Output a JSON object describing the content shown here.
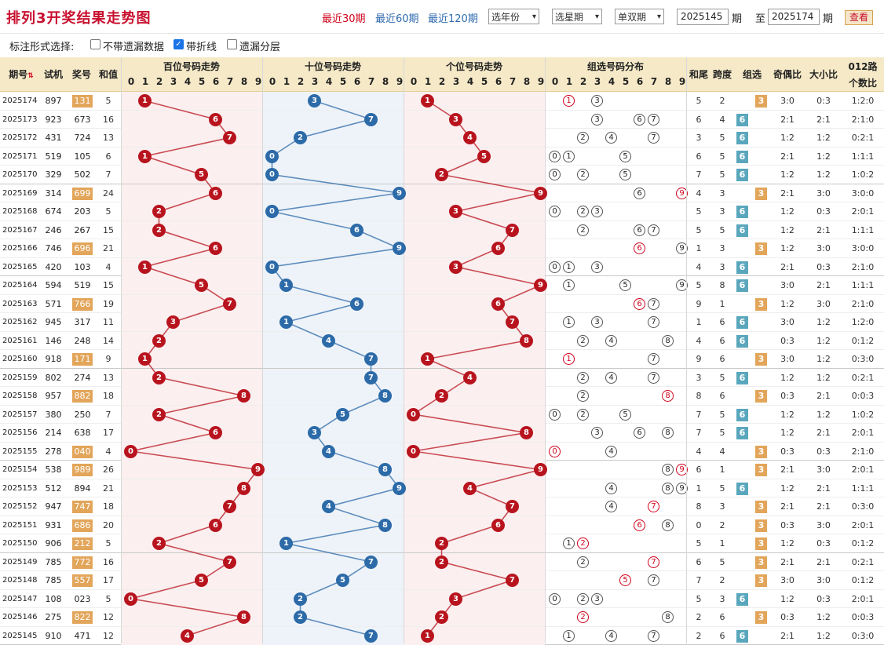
{
  "header": {
    "title": "排列3开奖结果走势图",
    "links": [
      {
        "label": "最近30期",
        "active": true
      },
      {
        "label": "最近60期",
        "active": false
      },
      {
        "label": "最近120期",
        "active": false
      }
    ],
    "select_year": "选年份",
    "select_week": "选星期",
    "select_parity": "单双期",
    "from_value": "2025145",
    "from_label": "期",
    "to_prefix": "至",
    "to_value": "2025174",
    "to_label": "期",
    "query_label": "查看"
  },
  "options": {
    "label": "标注形式选择:",
    "items": [
      {
        "label": "不带遗漏数据",
        "checked": false
      },
      {
        "label": "带折线",
        "checked": true
      },
      {
        "label": "遗漏分层",
        "checked": false
      }
    ]
  },
  "columns": {
    "period": "期号",
    "trial": "试机",
    "award": "奖号",
    "sum": "和值",
    "hundreds": "百位号码走势",
    "tens": "十位号码走势",
    "units": "个位号码走势",
    "group": "组选号码分布",
    "tail": "和尾",
    "span": "跨度",
    "zx": "组选",
    "oe": "奇偶比",
    "bs": "大小比",
    "road": "012路",
    "road2": "个数比",
    "digits": [
      "0",
      "1",
      "2",
      "3",
      "4",
      "5",
      "6",
      "7",
      "8",
      "9"
    ]
  },
  "colors": {
    "red": "#b8141e",
    "blue": "#2c6aa8",
    "header_bg": "#f5e9c7",
    "zu3": "#e2a55a",
    "zu6": "#5aa7bd"
  },
  "rows": [
    {
      "p": "2025174",
      "t": "897",
      "a": "131",
      "s": "5",
      "tail": "5",
      "span": "2",
      "zx": "3",
      "oe": "3:0",
      "bs": "0:3",
      "road": "1:2:0",
      "hl": true
    },
    {
      "p": "2025173",
      "t": "923",
      "a": "673",
      "s": "16",
      "tail": "6",
      "span": "4",
      "zx": "6",
      "oe": "2:1",
      "bs": "2:1",
      "road": "2:1:0"
    },
    {
      "p": "2025172",
      "t": "431",
      "a": "724",
      "s": "13",
      "tail": "3",
      "span": "5",
      "zx": "6",
      "oe": "1:2",
      "bs": "1:2",
      "road": "0:2:1"
    },
    {
      "p": "2025171",
      "t": "519",
      "a": "105",
      "s": "6",
      "tail": "6",
      "span": "5",
      "zx": "6",
      "oe": "2:1",
      "bs": "1:2",
      "road": "1:1:1"
    },
    {
      "p": "2025170",
      "t": "329",
      "a": "502",
      "s": "7",
      "tail": "7",
      "span": "5",
      "zx": "6",
      "oe": "1:2",
      "bs": "1:2",
      "road": "1:0:2"
    },
    {
      "p": "2025169",
      "t": "314",
      "a": "699",
      "s": "24",
      "tail": "4",
      "span": "3",
      "zx": "3",
      "oe": "2:1",
      "bs": "3:0",
      "road": "3:0:0",
      "hl": true
    },
    {
      "p": "2025168",
      "t": "674",
      "a": "203",
      "s": "5",
      "tail": "5",
      "span": "3",
      "zx": "6",
      "oe": "1:2",
      "bs": "0:3",
      "road": "2:0:1"
    },
    {
      "p": "2025167",
      "t": "246",
      "a": "267",
      "s": "15",
      "tail": "5",
      "span": "5",
      "zx": "6",
      "oe": "1:2",
      "bs": "2:1",
      "road": "1:1:1"
    },
    {
      "p": "2025166",
      "t": "746",
      "a": "696",
      "s": "21",
      "tail": "1",
      "span": "3",
      "zx": "3",
      "oe": "1:2",
      "bs": "3:0",
      "road": "3:0:0",
      "hl": true
    },
    {
      "p": "2025165",
      "t": "420",
      "a": "103",
      "s": "4",
      "tail": "4",
      "span": "3",
      "zx": "6",
      "oe": "2:1",
      "bs": "0:3",
      "road": "2:1:0"
    },
    {
      "p": "2025164",
      "t": "594",
      "a": "519",
      "s": "15",
      "tail": "5",
      "span": "8",
      "zx": "6",
      "oe": "3:0",
      "bs": "2:1",
      "road": "1:1:1"
    },
    {
      "p": "2025163",
      "t": "571",
      "a": "766",
      "s": "19",
      "tail": "9",
      "span": "1",
      "zx": "3",
      "oe": "1:2",
      "bs": "3:0",
      "road": "2:1:0",
      "hl": true
    },
    {
      "p": "2025162",
      "t": "945",
      "a": "317",
      "s": "11",
      "tail": "1",
      "span": "6",
      "zx": "6",
      "oe": "3:0",
      "bs": "1:2",
      "road": "1:2:0"
    },
    {
      "p": "2025161",
      "t": "146",
      "a": "248",
      "s": "14",
      "tail": "4",
      "span": "6",
      "zx": "6",
      "oe": "0:3",
      "bs": "1:2",
      "road": "0:1:2"
    },
    {
      "p": "2025160",
      "t": "918",
      "a": "171",
      "s": "9",
      "tail": "9",
      "span": "6",
      "zx": "3",
      "oe": "3:0",
      "bs": "1:2",
      "road": "0:3:0",
      "hl": true
    },
    {
      "p": "2025159",
      "t": "802",
      "a": "274",
      "s": "13",
      "tail": "3",
      "span": "5",
      "zx": "6",
      "oe": "1:2",
      "bs": "1:2",
      "road": "0:2:1"
    },
    {
      "p": "2025158",
      "t": "957",
      "a": "882",
      "s": "18",
      "tail": "8",
      "span": "6",
      "zx": "3",
      "oe": "0:3",
      "bs": "2:1",
      "road": "0:0:3",
      "hl": true
    },
    {
      "p": "2025157",
      "t": "380",
      "a": "250",
      "s": "7",
      "tail": "7",
      "span": "5",
      "zx": "6",
      "oe": "1:2",
      "bs": "1:2",
      "road": "1:0:2"
    },
    {
      "p": "2025156",
      "t": "214",
      "a": "638",
      "s": "17",
      "tail": "7",
      "span": "5",
      "zx": "6",
      "oe": "1:2",
      "bs": "2:1",
      "road": "2:0:1"
    },
    {
      "p": "2025155",
      "t": "278",
      "a": "040",
      "s": "4",
      "tail": "4",
      "span": "4",
      "zx": "3",
      "oe": "0:3",
      "bs": "0:3",
      "road": "2:1:0",
      "hl": true
    },
    {
      "p": "2025154",
      "t": "538",
      "a": "989",
      "s": "26",
      "tail": "6",
      "span": "1",
      "zx": "3",
      "oe": "2:1",
      "bs": "3:0",
      "road": "2:0:1",
      "hl": true
    },
    {
      "p": "2025153",
      "t": "512",
      "a": "894",
      "s": "21",
      "tail": "1",
      "span": "5",
      "zx": "6",
      "oe": "1:2",
      "bs": "2:1",
      "road": "1:1:1"
    },
    {
      "p": "2025152",
      "t": "947",
      "a": "747",
      "s": "18",
      "tail": "8",
      "span": "3",
      "zx": "3",
      "oe": "2:1",
      "bs": "2:1",
      "road": "0:3:0",
      "hl": true
    },
    {
      "p": "2025151",
      "t": "931",
      "a": "686",
      "s": "20",
      "tail": "0",
      "span": "2",
      "zx": "3",
      "oe": "0:3",
      "bs": "3:0",
      "road": "2:0:1",
      "hl": true
    },
    {
      "p": "2025150",
      "t": "906",
      "a": "212",
      "s": "5",
      "tail": "5",
      "span": "1",
      "zx": "3",
      "oe": "1:2",
      "bs": "0:3",
      "road": "0:1:2",
      "hl": true
    },
    {
      "p": "2025149",
      "t": "785",
      "a": "772",
      "s": "16",
      "tail": "6",
      "span": "5",
      "zx": "3",
      "oe": "2:1",
      "bs": "2:1",
      "road": "0:2:1",
      "hl": true
    },
    {
      "p": "2025148",
      "t": "785",
      "a": "557",
      "s": "17",
      "tail": "7",
      "span": "2",
      "zx": "3",
      "oe": "3:0",
      "bs": "3:0",
      "road": "0:1:2",
      "hl": true
    },
    {
      "p": "2025147",
      "t": "108",
      "a": "023",
      "s": "5",
      "tail": "5",
      "span": "3",
      "zx": "6",
      "oe": "1:2",
      "bs": "0:3",
      "road": "2:0:1"
    },
    {
      "p": "2025146",
      "t": "275",
      "a": "822",
      "s": "12",
      "tail": "2",
      "span": "6",
      "zx": "3",
      "oe": "0:3",
      "bs": "1:2",
      "road": "0:0:3",
      "hl": true
    },
    {
      "p": "2025145",
      "t": "910",
      "a": "471",
      "s": "12",
      "tail": "2",
      "span": "6",
      "zx": "6",
      "oe": "2:1",
      "bs": "1:2",
      "road": "0:3:0"
    }
  ]
}
